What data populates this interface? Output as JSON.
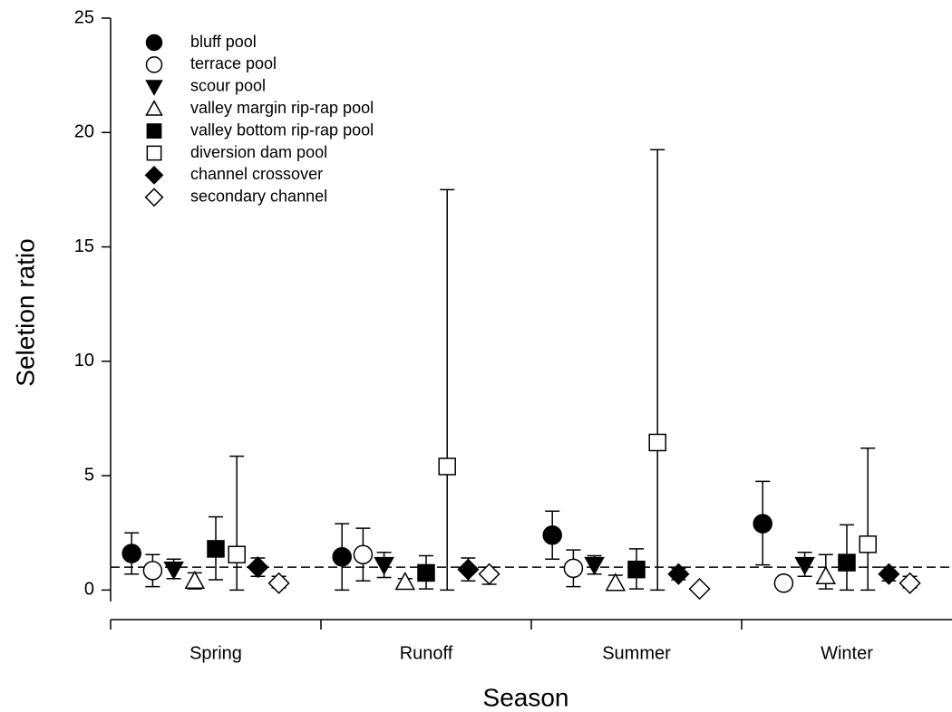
{
  "chart_data": {
    "type": "scatter",
    "x_label": "Season",
    "y_label": "Seletion ratio",
    "categories": [
      "Spring",
      "Runoff",
      "Summer",
      "Winter"
    ],
    "ylim": [
      -0.5,
      25
    ],
    "yticks": [
      0,
      5,
      10,
      15,
      20,
      25
    ],
    "reference_line": 1,
    "legend": "upper left",
    "series": [
      {
        "name": "bluff pool",
        "marker": "circle",
        "filled": true,
        "color": "#000000",
        "values": [
          1.6,
          1.45,
          2.4,
          2.9
        ],
        "ci_low": [
          0.7,
          0,
          1.35,
          1.1
        ],
        "ci_high": [
          2.5,
          2.9,
          3.45,
          4.75
        ]
      },
      {
        "name": "terrace pool",
        "marker": "circle",
        "filled": false,
        "color": "#000000",
        "values": [
          0.85,
          1.55,
          0.95,
          0.3
        ],
        "ci_low": [
          0.15,
          0.4,
          0.15,
          0.2
        ],
        "ci_high": [
          1.55,
          2.7,
          1.75,
          0.4
        ]
      },
      {
        "name": "scour pool",
        "marker": "triangle-down",
        "filled": true,
        "color": "#000000",
        "values": [
          0.9,
          1.1,
          1.1,
          1.1
        ],
        "ci_low": [
          0.5,
          0.55,
          0.7,
          0.6
        ],
        "ci_high": [
          1.35,
          1.65,
          1.5,
          1.65
        ]
      },
      {
        "name": "valley margin rip-rap pool",
        "marker": "triangle-up",
        "filled": false,
        "color": "#000000",
        "values": [
          0.4,
          0.35,
          0.3,
          0.6
        ],
        "ci_low": [
          0.05,
          0.2,
          0.05,
          0.05
        ],
        "ci_high": [
          0.75,
          0.5,
          0.65,
          1.55
        ]
      },
      {
        "name": "valley bottom rip-rap pool",
        "marker": "square",
        "filled": true,
        "color": "#000000",
        "values": [
          1.8,
          0.75,
          0.9,
          1.2
        ],
        "ci_low": [
          0.45,
          0.05,
          0.05,
          0
        ],
        "ci_high": [
          3.2,
          1.5,
          1.8,
          2.85
        ]
      },
      {
        "name": "diversion dam pool",
        "marker": "square",
        "filled": false,
        "color": "#000000",
        "values": [
          1.55,
          5.4,
          6.45,
          2.0
        ],
        "ci_low": [
          0,
          0,
          0,
          0
        ],
        "ci_high": [
          5.85,
          17.5,
          19.25,
          6.2
        ]
      },
      {
        "name": "channel crossover",
        "marker": "diamond",
        "filled": true,
        "color": "#000000",
        "values": [
          1.0,
          0.9,
          0.7,
          0.7
        ],
        "ci_low": [
          0.6,
          0.4,
          0.45,
          0.4
        ],
        "ci_high": [
          1.4,
          1.4,
          0.95,
          1.0
        ]
      },
      {
        "name": "secondary channel",
        "marker": "diamond",
        "filled": false,
        "color": "#000000",
        "values": [
          0.3,
          0.7,
          0.05,
          0.3
        ],
        "ci_low": [
          0.1,
          0.25,
          0,
          0.1
        ],
        "ci_high": [
          0.6,
          1.0,
          0.1,
          0.6
        ]
      }
    ]
  }
}
